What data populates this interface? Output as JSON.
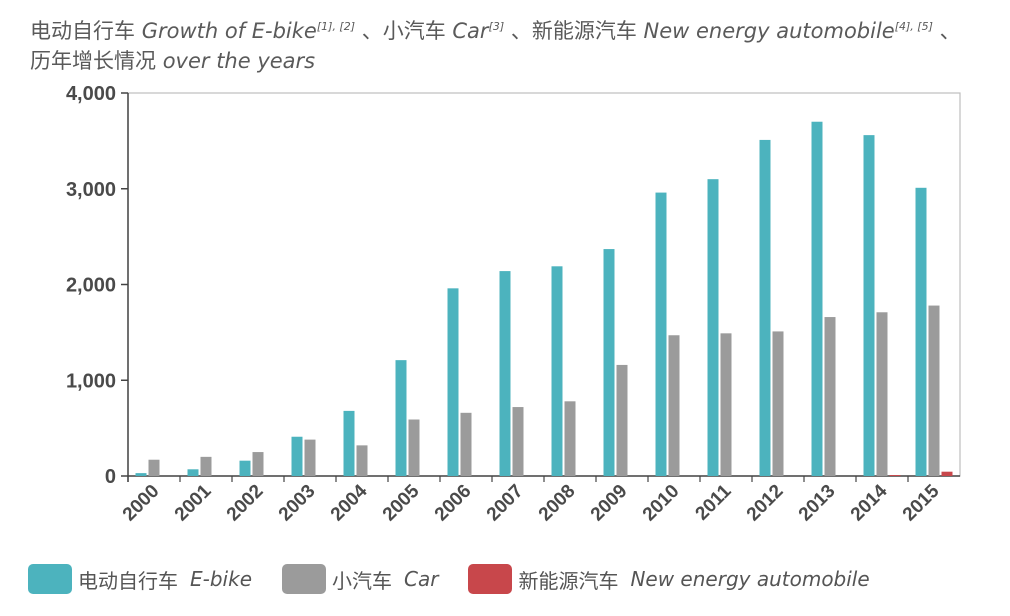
{
  "title": {
    "part1_cn": "电动自行车",
    "part1_en": "Growth of E-bike",
    "part1_sup": "[1], [2]",
    "sep1": "、",
    "part2_cn": "小汽车",
    "part2_en": "Car",
    "part2_sup": "[3]",
    "sep2": "、",
    "part3_cn": "新能源汽车",
    "part3_en": "New energy automobile",
    "part3_sup": "[4], [5]",
    "sep3": "、",
    "line2_cn": "历年增长情况",
    "line2_en": "over the years"
  },
  "legend": [
    {
      "cn": "电动自行车",
      "en": "E-bike",
      "color": "#4cb3be"
    },
    {
      "cn": "小汽车",
      "en": "Car",
      "color": "#9b9b9b"
    },
    {
      "cn": "新能源汽车",
      "en": "New energy automobile",
      "color": "#c8474b"
    }
  ],
  "chart_data": {
    "type": "bar",
    "categories": [
      "2000",
      "2001",
      "2002",
      "2003",
      "2004",
      "2005",
      "2006",
      "2007",
      "2008",
      "2009",
      "2010",
      "2011",
      "2012",
      "2013",
      "2014",
      "2015"
    ],
    "series": [
      {
        "name": "E-bike",
        "color": "#4cb3be",
        "values": [
          30,
          70,
          160,
          410,
          680,
          1210,
          1960,
          2140,
          2190,
          2370,
          2960,
          3100,
          3510,
          3700,
          3560,
          3010
        ]
      },
      {
        "name": "Car",
        "color": "#9b9b9b",
        "values": [
          170,
          200,
          250,
          380,
          320,
          590,
          660,
          720,
          780,
          1160,
          1470,
          1490,
          1510,
          1660,
          1710,
          1780
        ]
      },
      {
        "name": "New energy automobile",
        "color": "#c8474b",
        "values": [
          0,
          0,
          0,
          0,
          0,
          0,
          0,
          0,
          0,
          0,
          0,
          0,
          0,
          0,
          10,
          45
        ]
      }
    ],
    "yticks": [
      "0",
      "1,000",
      "2,000",
      "3,000",
      "4,000"
    ],
    "ytick_values": [
      0,
      1000,
      2000,
      3000,
      4000
    ],
    "ylim": [
      0,
      4000
    ],
    "grid": false,
    "legend_position": "bottom"
  }
}
